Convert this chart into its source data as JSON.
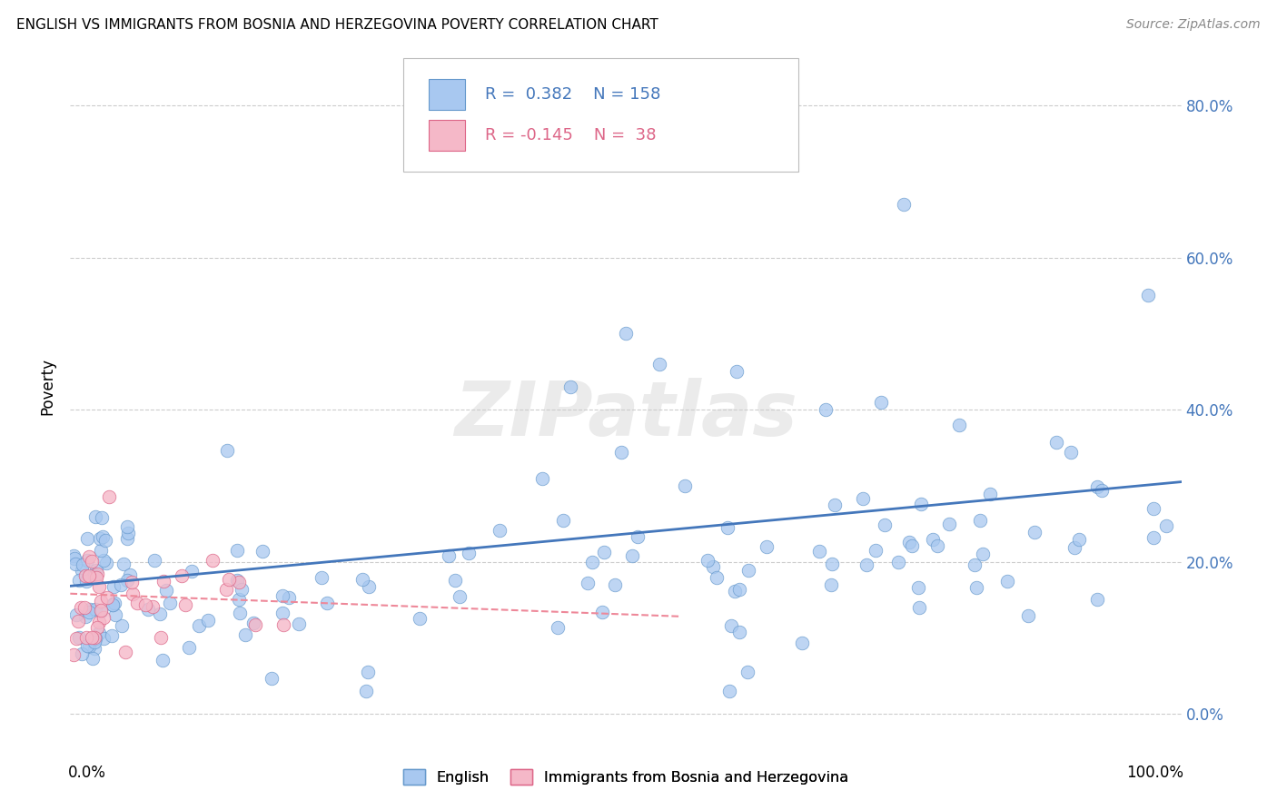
{
  "title": "ENGLISH VS IMMIGRANTS FROM BOSNIA AND HERZEGOVINA POVERTY CORRELATION CHART",
  "source": "Source: ZipAtlas.com",
  "ylabel": "Poverty",
  "color_english_fill": "#a8c8f0",
  "color_english_edge": "#6699cc",
  "color_bosnia_fill": "#f5b8c8",
  "color_bosnia_edge": "#dd6688",
  "color_line_english": "#4477bb",
  "color_line_bosnia": "#ee8899",
  "yticks": [
    0.0,
    0.2,
    0.4,
    0.6,
    0.8
  ],
  "ytick_labels": [
    "0.0%",
    "20.0%",
    "40.0%",
    "60.0%",
    "80.0%"
  ],
  "xlim": [
    0.0,
    1.0
  ],
  "ylim": [
    -0.02,
    0.88
  ],
  "watermark": "ZIPatlas",
  "legend_label_english": "English",
  "legend_label_bosnia": "Immigrants from Bosnia and Herzegovina",
  "grid_color": "#cccccc",
  "background": "#ffffff",
  "eng_line_x0": 0.0,
  "eng_line_y0": 0.168,
  "eng_line_x1": 1.0,
  "eng_line_y1": 0.305,
  "bos_line_x0": 0.0,
  "bos_line_y0": 0.158,
  "bos_line_x1": 0.55,
  "bos_line_y1": 0.128
}
